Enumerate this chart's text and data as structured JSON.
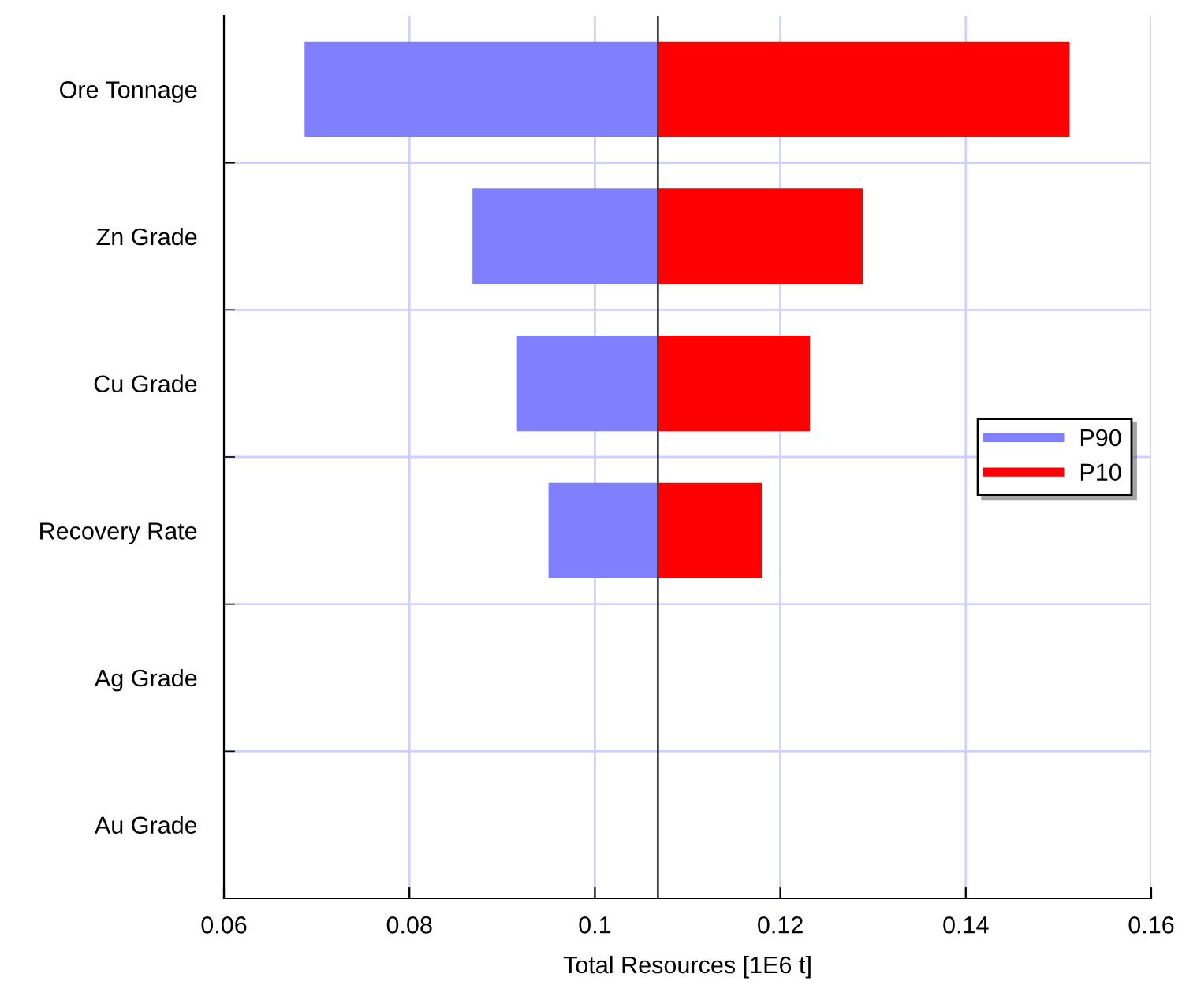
{
  "chart_data": {
    "type": "bar",
    "orientation": "horizontal",
    "xlabel": "Total Resources [1E6 t]",
    "categories": [
      "Ore Tonnage",
      "Zn Grade",
      "Cu Grade",
      "Recovery Rate",
      "Ag Grade",
      "Au Grade"
    ],
    "series": [
      {
        "name": "P90",
        "color": "#8080ff",
        "base": [
          0.0687,
          0.0868,
          0.0916,
          0.095,
          null,
          null
        ],
        "values": [
          0.0381,
          0.02,
          0.0152,
          0.0118,
          null,
          null
        ]
      },
      {
        "name": "P10",
        "color": "#ff0000",
        "base": [
          0.1068,
          0.1068,
          0.1068,
          0.1068,
          null,
          null
        ],
        "values": [
          0.0444,
          0.0221,
          0.0164,
          0.0112,
          null,
          null
        ]
      }
    ],
    "xlim": [
      0.06,
      0.16
    ],
    "xticks": [
      0.06,
      0.08,
      {
        "value": 0.1,
        "label": "0.1"
      },
      0.12,
      0.14,
      0.16
    ],
    "ref_lines": [
      {
        "axis": "x",
        "value": 0.1068,
        "color": "#404040"
      }
    ],
    "grid": true,
    "legend": "right"
  }
}
